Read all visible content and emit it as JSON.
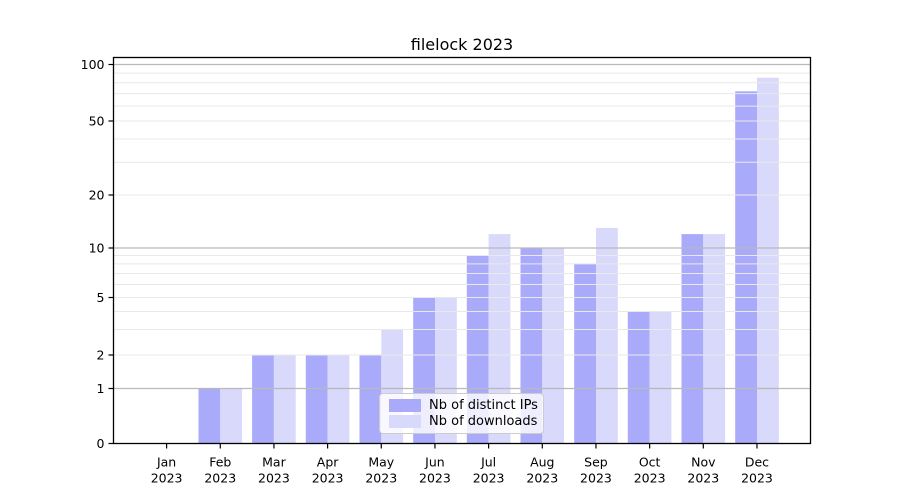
{
  "chart_data": {
    "type": "bar",
    "title": "filelock 2023",
    "scale": "symlog",
    "grid": true,
    "legend_position": "lower center",
    "categories": [
      {
        "month": "Jan",
        "year": "2023"
      },
      {
        "month": "Feb",
        "year": "2023"
      },
      {
        "month": "Mar",
        "year": "2023"
      },
      {
        "month": "Apr",
        "year": "2023"
      },
      {
        "month": "May",
        "year": "2023"
      },
      {
        "month": "Jun",
        "year": "2023"
      },
      {
        "month": "Jul",
        "year": "2023"
      },
      {
        "month": "Aug",
        "year": "2023"
      },
      {
        "month": "Sep",
        "year": "2023"
      },
      {
        "month": "Oct",
        "year": "2023"
      },
      {
        "month": "Nov",
        "year": "2023"
      },
      {
        "month": "Dec",
        "year": "2023"
      }
    ],
    "series": [
      {
        "name": "Nb of distinct IPs",
        "color": "#aaaafa",
        "values": [
          0,
          1,
          2,
          2,
          2,
          5,
          9,
          10,
          8,
          4,
          12,
          72
        ]
      },
      {
        "name": "Nb of downloads",
        "color": "#d9d9fb",
        "values": [
          0,
          1,
          2,
          2,
          3,
          5,
          12,
          10,
          13,
          4,
          12,
          85
        ]
      }
    ],
    "y_axis": {
      "tick_labels": [
        "0",
        "1",
        "2",
        "5",
        "10",
        "20",
        "50",
        "100"
      ],
      "ticks": [
        0,
        1,
        2,
        5,
        10,
        20,
        50,
        100
      ],
      "ylim": [
        0,
        110
      ]
    },
    "colors": {
      "grid_major": "#b9b9b9",
      "grid_minor": "#e9e9e9",
      "spine": "#000000",
      "text": "#000000"
    }
  }
}
